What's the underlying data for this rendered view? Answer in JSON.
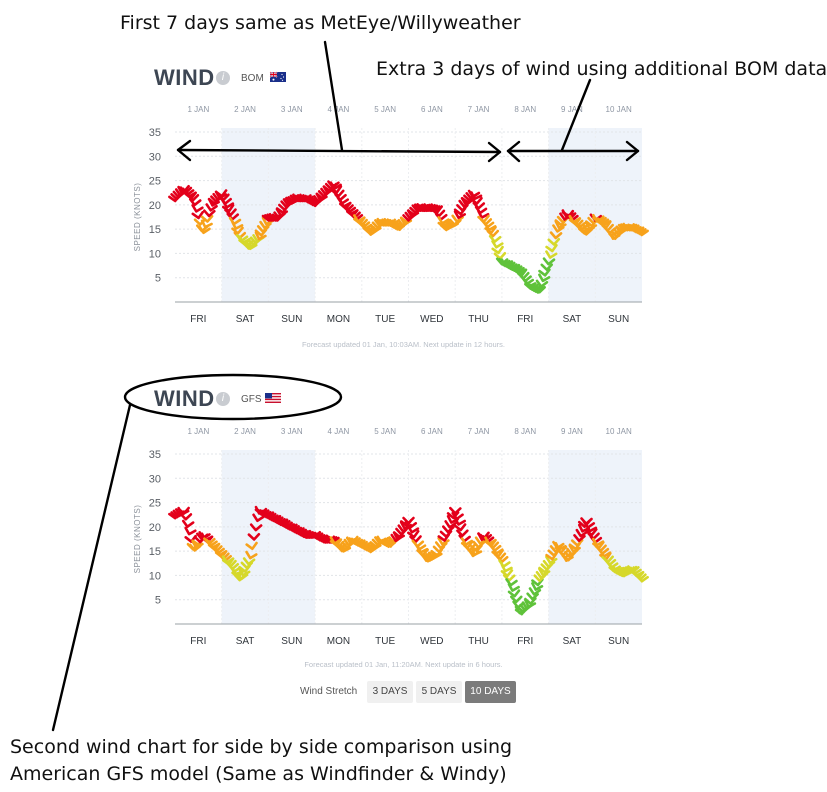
{
  "annotations": {
    "top": "First 7 days same as MetEye/Willyweather",
    "right": "Extra 3 days of wind using additional BOM data",
    "bottom_line1": "Second wind chart for side by side comparison using",
    "bottom_line2": "American GFS model (Same as Windfinder & Windy)"
  },
  "controls": {
    "stretch_label": "Wind Stretch",
    "options": [
      "3 DAYS",
      "5 DAYS",
      "10 DAYS"
    ],
    "selected": "10 DAYS"
  },
  "colors": {
    "shade": "#eef3fa",
    "strong": "#e3001b",
    "mid": "#f7a21b",
    "light": "#d6d82a",
    "calm": "#5fc23a"
  },
  "chart_data": [
    {
      "type": "line",
      "title": "WIND",
      "model": "BOM",
      "flag": "australia-flag-icon",
      "ylabel": "SPEED (KNOTS)",
      "ylim": [
        0,
        35
      ],
      "yticks": [
        5,
        10,
        15,
        20,
        25,
        30,
        35
      ],
      "date_labels": [
        "1 JAN",
        "2 JAN",
        "3 JAN",
        "4 JAN",
        "5 JAN",
        "6 JAN",
        "7 JAN",
        "8 JAN",
        "9 JAN",
        "10 JAN"
      ],
      "day_labels": [
        "FRI",
        "SAT",
        "SUN",
        "MON",
        "TUE",
        "WED",
        "THU",
        "FRI",
        "SAT",
        "SUN"
      ],
      "shaded_days": [
        "SAT",
        "SUN"
      ],
      "x_unit": "days from 1 Jan 00:00",
      "x": [
        0,
        0.2,
        0.4,
        0.6,
        0.8,
        1.0,
        1.2,
        1.4,
        1.6,
        1.8,
        2.0,
        2.2,
        2.4,
        2.6,
        2.8,
        3.0,
        3.2,
        3.4,
        3.6,
        3.8,
        4.0,
        4.2,
        4.4,
        4.6,
        4.8,
        5.0,
        5.2,
        5.4,
        5.6,
        5.8,
        6.0,
        6.2,
        6.4,
        6.6,
        6.8,
        7.0,
        7.2,
        7.4,
        7.6,
        7.8,
        8.0,
        8.2,
        8.4,
        8.6,
        8.8,
        9.0,
        9.2,
        9.4,
        9.6,
        9.8,
        10.0
      ],
      "speed": [
        21,
        23,
        21,
        14,
        20,
        22,
        18,
        13,
        11,
        13,
        17,
        17,
        20,
        21,
        21,
        20,
        22,
        24,
        20,
        18,
        16,
        14,
        16,
        16,
        15,
        17,
        19,
        19,
        19,
        15,
        16,
        20,
        22,
        17,
        14,
        8,
        7,
        6,
        3,
        2,
        8,
        15,
        18,
        16,
        14,
        17,
        16,
        13,
        15,
        15,
        14
      ],
      "footnote": "Forecast updated 01 Jan, 10:03AM. Next update in 12 hours."
    },
    {
      "type": "line",
      "title": "WIND",
      "model": "GFS",
      "flag": "usa-flag-icon",
      "ylabel": "SPEED (KNOTS)",
      "ylim": [
        0,
        35
      ],
      "yticks": [
        5,
        10,
        15,
        20,
        25,
        30,
        35
      ],
      "date_labels": [
        "1 JAN",
        "2 JAN",
        "3 JAN",
        "4 JAN",
        "5 JAN",
        "6 JAN",
        "7 JAN",
        "8 JAN",
        "9 JAN",
        "10 JAN"
      ],
      "day_labels": [
        "FRI",
        "SAT",
        "SUN",
        "MON",
        "TUE",
        "WED",
        "THU",
        "FRI",
        "SAT",
        "SUN"
      ],
      "shaded_days": [
        "SAT",
        "SUN"
      ],
      "x_unit": "days from 1 Jan 00:00",
      "x": [
        0,
        0.2,
        0.4,
        0.6,
        0.8,
        1.0,
        1.2,
        1.4,
        1.6,
        1.8,
        2.0,
        2.2,
        2.4,
        2.6,
        2.8,
        3.0,
        3.2,
        3.4,
        3.6,
        3.8,
        4.0,
        4.2,
        4.4,
        4.6,
        4.8,
        5.0,
        5.2,
        5.4,
        5.6,
        5.8,
        6.0,
        6.2,
        6.4,
        6.6,
        6.8,
        7.0,
        7.2,
        7.4,
        7.6,
        7.8,
        8.0,
        8.2,
        8.4,
        8.6,
        8.8,
        9.0,
        9.2,
        9.4,
        9.6,
        9.8,
        10.0
      ],
      "speed": [
        22,
        23,
        15,
        18,
        16,
        14,
        12,
        9,
        13,
        23,
        22,
        21,
        20,
        19,
        18,
        18,
        17,
        17,
        15,
        17,
        16,
        15,
        17,
        16,
        18,
        21,
        16,
        13,
        14,
        18,
        23,
        17,
        14,
        18,
        16,
        13,
        8,
        2,
        4,
        9,
        12,
        16,
        13,
        16,
        21,
        17,
        14,
        11,
        10,
        11,
        9
      ],
      "footnote": "Forecast updated 01 Jan, 11:20AM. Next update in 6 hours."
    }
  ]
}
